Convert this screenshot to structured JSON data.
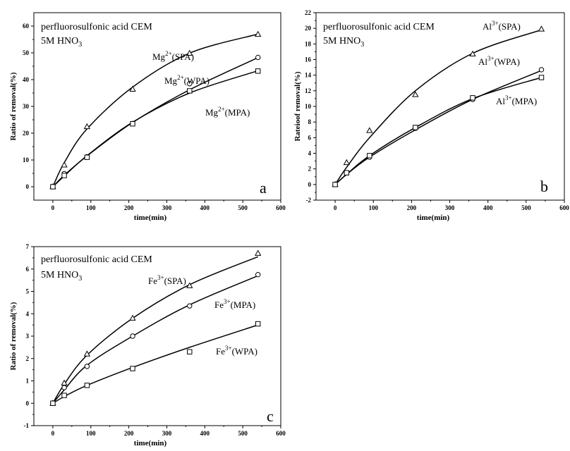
{
  "chart_data": [
    {
      "type": "line",
      "panel_letter": "a",
      "annotation_line1": "perfluorosulfonic acid CEM",
      "annotation_line2_prefix": "5M HNO",
      "annotation_line2_sub": "3",
      "xlabel": "time(min)",
      "ylabel": "Ratio of removal(%)",
      "xlim": [
        -50,
        600
      ],
      "ylim": [
        -5,
        65
      ],
      "xticks": [
        0,
        100,
        200,
        300,
        400,
        500,
        600
      ],
      "yticks": [
        0,
        10,
        20,
        30,
        40,
        50,
        60
      ],
      "x": [
        0,
        30,
        90,
        210,
        360,
        540
      ],
      "series": [
        {
          "name_prefix": "Mg",
          "name_sup": "2+",
          "name_suffix": "(SPA)",
          "marker": "triangle",
          "values": [
            0,
            8.1,
            22.4,
            36.4,
            49.8,
            56.9
          ],
          "fit": [
            0,
            9.0,
            21.6,
            37.2,
            49.9,
            57.0
          ]
        },
        {
          "name_prefix": "Mg",
          "name_sup": "2+",
          "name_suffix": "(WPA)",
          "marker": "circle",
          "values": [
            0,
            4.9,
            11.2,
            23.6,
            38.5,
            48.3
          ],
          "fit": [
            0,
            4.3,
            11.5,
            24.0,
            36.2,
            48.2
          ]
        },
        {
          "name_prefix": "Mg",
          "name_sup": "2+",
          "name_suffix": "(MPA)",
          "marker": "square",
          "values": [
            0,
            4.2,
            11.0,
            23.5,
            35.8,
            43.2
          ],
          "fit": [
            0,
            4.0,
            11.6,
            24.1,
            35.0,
            43.3
          ]
        }
      ]
    },
    {
      "type": "line",
      "panel_letter": "b",
      "annotation_line1": "perfluorosulfonic acid CEM",
      "annotation_line2_prefix": "5M HNO",
      "annotation_line2_sub": "3",
      "xlabel": "time(min)",
      "ylabel": "Rateioof removal(%)",
      "xlim": [
        -50,
        600
      ],
      "ylim": [
        -2,
        22
      ],
      "xticks": [
        0,
        100,
        200,
        300,
        400,
        500,
        600
      ],
      "yticks": [
        -2,
        0,
        2,
        4,
        6,
        8,
        10,
        12,
        14,
        16,
        18,
        20,
        22
      ],
      "x": [
        0,
        30,
        90,
        210,
        360,
        540
      ],
      "series": [
        {
          "name_prefix": "Al",
          "name_sup": "3+",
          "name_suffix": "(SPA)",
          "marker": "triangle",
          "values": [
            0,
            2.8,
            6.9,
            11.5,
            16.7,
            19.9
          ],
          "fit": [
            0,
            2.2,
            6.0,
            12.0,
            16.8,
            19.8
          ]
        },
        {
          "name_prefix": "Al",
          "name_sup": "3+",
          "name_suffix": "(WPA)",
          "marker": "circle",
          "values": [
            0,
            1.5,
            3.5,
            7.2,
            10.9,
            14.7
          ],
          "fit": [
            0,
            1.3,
            3.5,
            7.0,
            10.9,
            14.6
          ]
        },
        {
          "name_prefix": "Al",
          "name_sup": "3+",
          "name_suffix": "(MPA)",
          "marker": "square",
          "values": [
            0,
            1.5,
            3.7,
            7.3,
            11.1,
            13.7
          ],
          "fit": [
            0,
            1.3,
            3.7,
            7.3,
            11.0,
            13.7
          ]
        }
      ]
    },
    {
      "type": "line",
      "panel_letter": "c",
      "annotation_line1": "perfluorosulfonic acid CEM",
      "annotation_line2_prefix": "5M HNO",
      "annotation_line2_sub": "3",
      "xlabel": "time(min)",
      "ylabel": "Ratio of removal(%)",
      "xlim": [
        -50,
        600
      ],
      "ylim": [
        -1,
        7
      ],
      "xticks": [
        0,
        100,
        200,
        300,
        400,
        500,
        600
      ],
      "yticks": [
        -1,
        0,
        1,
        2,
        3,
        4,
        5,
        6,
        7
      ],
      "x": [
        0,
        30,
        90,
        210,
        360,
        540
      ],
      "series": [
        {
          "name_prefix": "Fe",
          "name_sup": "3+",
          "name_suffix": "(SPA)",
          "marker": "triangle",
          "values": [
            0,
            0.9,
            2.2,
            3.8,
            5.25,
            6.7
          ],
          "fit": [
            0,
            0.85,
            2.15,
            3.8,
            5.3,
            6.55
          ]
        },
        {
          "name_prefix": "Fe",
          "name_sup": "3+",
          "name_suffix": "(MPA)",
          "marker": "circle",
          "values": [
            0,
            0.7,
            1.65,
            3.0,
            4.35,
            5.75
          ],
          "fit": [
            0,
            0.6,
            1.7,
            3.0,
            4.4,
            5.7
          ]
        },
        {
          "name_prefix": "Fe",
          "name_sup": "3+",
          "name_suffix": "(WPA)",
          "marker": "square",
          "values": [
            0,
            0.35,
            0.8,
            1.55,
            2.3,
            3.55
          ],
          "fit": [
            0,
            0.3,
            0.8,
            1.6,
            2.5,
            3.5
          ]
        }
      ]
    }
  ]
}
